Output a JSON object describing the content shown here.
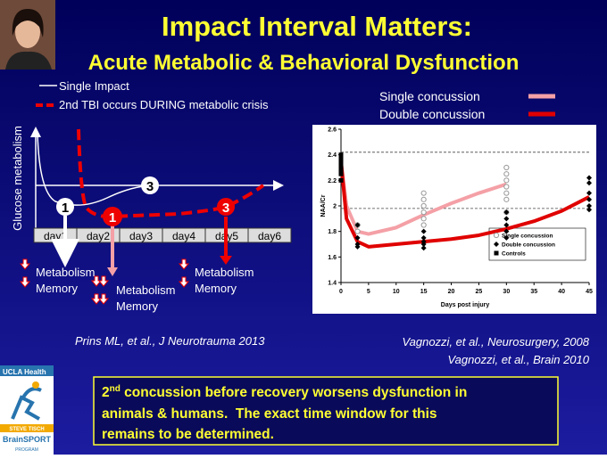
{
  "title": "Impact Interval Matters:",
  "subtitle": "Acute Metabolic & Behavioral Dysfunction",
  "left_diagram": {
    "legend": [
      "Single Impact",
      "2nd TBI occurs DURING metabolic crisis"
    ],
    "y_label": "Glucose metabolism",
    "days": [
      "day1",
      "day2",
      "day3",
      "day4",
      "day5",
      "day6"
    ],
    "markers": [
      "1",
      "3",
      "1",
      "3"
    ],
    "notes": [
      [
        "Metabolism",
        "Memory"
      ],
      [
        "Metabolism",
        "Memory"
      ],
      [
        "Metabolism",
        "Memory"
      ]
    ],
    "citation": "Prins ML, et al., J Neurotrauma 2013"
  },
  "chart_data": {
    "type": "line",
    "x_label": "Days post injury",
    "y_label": "NAA/Cr",
    "xlim": [
      0,
      45
    ],
    "ylim": [
      1.4,
      2.6
    ],
    "xticks": [
      0,
      5,
      10,
      15,
      20,
      25,
      30,
      35,
      40,
      45
    ],
    "yticks": [
      1.4,
      1.6,
      1.8,
      2,
      2.2,
      2.4,
      2.6
    ],
    "reference_lines": [
      2.42,
      1.98
    ],
    "series": [
      {
        "name": "Single concussion",
        "color": "#f4a0a6",
        "marker": "line",
        "x": [
          0,
          1,
          3,
          5,
          10,
          15,
          20,
          25,
          30
        ],
        "values": [
          2.35,
          2.0,
          1.8,
          1.78,
          1.83,
          1.93,
          2.02,
          2.1,
          2.17
        ]
      },
      {
        "name": "Double concussion",
        "color": "#e00000",
        "marker": "line",
        "x": [
          0,
          1,
          3,
          5,
          10,
          15,
          20,
          25,
          30,
          35,
          40,
          45
        ],
        "values": [
          2.35,
          1.9,
          1.72,
          1.68,
          1.7,
          1.72,
          1.74,
          1.77,
          1.82,
          1.88,
          1.96,
          2.07
        ]
      },
      {
        "name": "Single concussion",
        "color": "#999999",
        "marker": "circle",
        "x": [
          3,
          3,
          15,
          15,
          15,
          15,
          15,
          15,
          30,
          30,
          30,
          30,
          30,
          30,
          30
        ],
        "values": [
          1.85,
          1.8,
          2.1,
          2.05,
          2.0,
          1.95,
          1.9,
          1.85,
          2.3,
          2.25,
          2.2,
          2.15,
          2.1,
          2.05,
          1.95
        ]
      },
      {
        "name": "Double concussion",
        "color": "#000000",
        "marker": "diamond",
        "x": [
          3,
          3,
          3,
          3,
          15,
          15,
          15,
          15,
          15,
          30,
          30,
          30,
          30,
          30,
          45,
          45,
          45,
          45,
          45,
          45
        ],
        "values": [
          1.85,
          1.75,
          1.7,
          1.68,
          1.8,
          1.75,
          1.72,
          1.7,
          1.67,
          1.95,
          1.9,
          1.85,
          1.8,
          1.75,
          2.22,
          2.18,
          2.1,
          2.05,
          2.0,
          1.97
        ]
      },
      {
        "name": "Controls",
        "color": "#000000",
        "marker": "square",
        "x": [
          0,
          0,
          0,
          0,
          0,
          0,
          0,
          0
        ],
        "values": [
          2.4,
          2.37,
          2.35,
          2.32,
          2.3,
          2.28,
          2.25,
          2.2
        ]
      }
    ]
  },
  "citations_right": [
    "Vagnozzi, et al., Neurosurgery, 2008",
    "Vagnozzi, et al., Brain 2010"
  ],
  "logo": {
    "top": "UCLA Health",
    "band": "STEVE TISCH",
    "name": "BrainSPORT",
    "program": "PROGRAM"
  },
  "callout": {
    "number": "2",
    "superscript": "nd",
    "lines": [
      " concussion before recovery worsens dysfunction in",
      "animals & humans.  The exact time window for this",
      "remains to be determined."
    ]
  }
}
